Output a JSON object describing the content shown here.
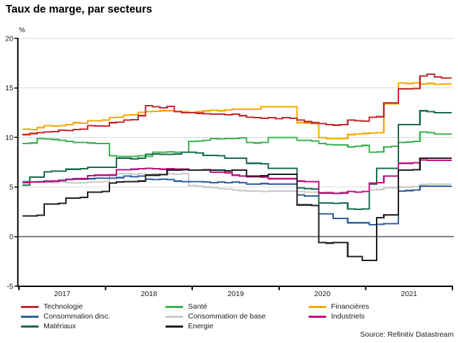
{
  "title": "Taux de marge, par secteurs",
  "source": "Source: Refinitiv Datastream",
  "y_axis": {
    "unit": "%",
    "tick_labels": [
      "20",
      "15",
      "10",
      "5",
      "0",
      "-5"
    ]
  },
  "x_axis": {
    "year_labels": [
      "2017",
      "2018",
      "2019",
      "2020",
      "2021"
    ]
  },
  "legend": {
    "items": [
      {
        "label": "Technologie",
        "color": "#c0282e"
      },
      {
        "label": "Consommation disc.",
        "color": "#2e5f9e"
      },
      {
        "label": "Matériaux",
        "color": "#176a45"
      },
      {
        "label": "Santé",
        "color": "#3bb14e"
      },
      {
        "label": "Consommation de base",
        "color": "#c9c9c9"
      },
      {
        "label": "Energie",
        "color": "#1c1c1c"
      },
      {
        "label": "Financières",
        "color": "#f6a800"
      },
      {
        "label": "Industriels",
        "color": "#bd0f7d"
      }
    ]
  },
  "chart_data": {
    "type": "line",
    "title": "Taux de marge, par secteurs",
    "ylabel": "%",
    "ylim": [
      -5,
      20
    ],
    "y_ticks": [
      -5,
      0,
      5,
      10,
      15,
      20
    ],
    "grid": true,
    "legend_position": "bottom",
    "x_years": [
      "2017",
      "2018",
      "2019",
      "2020",
      "2021"
    ],
    "x_sampling": "monthly",
    "colors": {
      "grid": "#d9d9d9",
      "axis": "#000000",
      "tick_text": "#1a1a1a"
    },
    "draw_order": [
      "Consommation de base",
      "Consommation disc.",
      "Santé",
      "Matériaux",
      "Financières",
      "Technologie",
      "Industriels",
      "Energie"
    ],
    "series": [
      {
        "name": "Technologie",
        "color": "#c0282e",
        "values": [
          10.3,
          10.4,
          10.5,
          10.55,
          10.6,
          10.75,
          10.7,
          10.8,
          10.85,
          11.2,
          11.15,
          11.15,
          11.5,
          11.55,
          11.75,
          11.8,
          12.2,
          13.2,
          13.1,
          13.0,
          13.15,
          12.6,
          12.5,
          12.5,
          12.45,
          12.4,
          12.35,
          12.35,
          12.3,
          12.35,
          12.2,
          12.05,
          12.0,
          11.95,
          12.0,
          11.9,
          12.0,
          11.95,
          11.75,
          11.6,
          11.5,
          11.4,
          11.3,
          11.25,
          11.3,
          11.75,
          11.7,
          11.65,
          12.05,
          12.1,
          13.5,
          13.5,
          14.9,
          14.9,
          14.95,
          16.2,
          16.4,
          16.1,
          16.0,
          16.0
        ]
      },
      {
        "name": "Consommation disc.",
        "color": "#2e5f9e",
        "values": [
          5.5,
          5.5,
          5.55,
          5.6,
          5.6,
          5.65,
          5.8,
          5.85,
          5.8,
          5.85,
          5.9,
          5.9,
          5.9,
          5.95,
          6.1,
          6.05,
          6.1,
          5.8,
          5.75,
          5.8,
          5.75,
          5.6,
          5.55,
          5.55,
          5.55,
          5.5,
          5.45,
          5.5,
          5.45,
          5.5,
          5.45,
          5.3,
          5.3,
          5.35,
          5.3,
          5.3,
          5.3,
          5.3,
          4.2,
          4.1,
          4.1,
          2.3,
          2.3,
          1.85,
          1.85,
          1.4,
          1.4,
          1.4,
          1.2,
          1.25,
          1.3,
          1.3,
          4.6,
          4.65,
          4.7,
          5.1,
          5.1,
          5.1,
          5.1,
          5.1
        ]
      },
      {
        "name": "Matériaux",
        "color": "#176a45",
        "values": [
          5.2,
          6.0,
          6.0,
          6.55,
          6.6,
          6.6,
          6.8,
          6.8,
          6.85,
          7.0,
          7.0,
          7.0,
          7.0,
          7.9,
          7.9,
          7.85,
          7.9,
          8.3,
          8.35,
          8.3,
          8.3,
          8.35,
          8.5,
          8.5,
          8.45,
          8.2,
          8.2,
          8.15,
          7.9,
          7.9,
          7.9,
          7.4,
          7.4,
          7.35,
          6.9,
          6.9,
          6.9,
          6.9,
          4.9,
          4.85,
          4.8,
          3.4,
          3.4,
          3.35,
          3.4,
          2.8,
          2.75,
          2.8,
          5.3,
          6.9,
          6.9,
          6.9,
          11.3,
          11.3,
          11.3,
          12.7,
          12.6,
          12.5,
          12.5,
          12.5
        ]
      },
      {
        "name": "Santé",
        "color": "#3bb14e",
        "values": [
          9.4,
          9.45,
          9.9,
          9.85,
          9.8,
          9.7,
          9.6,
          9.5,
          9.5,
          9.45,
          9.4,
          9.4,
          8.15,
          8.1,
          8.1,
          8.1,
          8.15,
          8.1,
          8.5,
          8.5,
          8.55,
          8.5,
          8.5,
          9.6,
          9.65,
          9.7,
          9.9,
          9.85,
          9.9,
          9.9,
          9.95,
          9.5,
          9.45,
          9.5,
          10.0,
          10.0,
          10.0,
          10.0,
          9.7,
          9.7,
          9.65,
          9.4,
          9.3,
          9.25,
          9.25,
          9.05,
          9.1,
          9.2,
          8.5,
          8.55,
          9.05,
          9.1,
          9.5,
          9.55,
          9.6,
          10.55,
          10.5,
          10.35,
          10.35,
          10.35
        ]
      },
      {
        "name": "Consommation de base",
        "color": "#c9c9c9",
        "values": [
          5.6,
          5.55,
          5.5,
          5.5,
          5.45,
          5.5,
          5.45,
          5.4,
          5.45,
          5.5,
          5.5,
          5.55,
          6.3,
          6.35,
          6.35,
          6.3,
          6.35,
          6.3,
          6.35,
          6.3,
          6.35,
          6.3,
          6.35,
          5.15,
          5.1,
          5.0,
          4.95,
          4.85,
          4.8,
          4.7,
          4.65,
          4.6,
          4.6,
          4.55,
          4.6,
          4.6,
          4.6,
          4.6,
          4.55,
          4.5,
          4.5,
          4.45,
          4.5,
          4.45,
          4.5,
          4.55,
          4.5,
          4.55,
          4.7,
          4.75,
          4.9,
          4.9,
          5.0,
          5.0,
          5.05,
          5.25,
          5.3,
          5.3,
          5.3,
          5.3
        ]
      },
      {
        "name": "Energie",
        "color": "#1c1c1c",
        "values": [
          2.1,
          2.1,
          2.15,
          3.3,
          3.3,
          3.35,
          3.9,
          3.9,
          3.95,
          4.5,
          4.5,
          4.55,
          5.4,
          5.5,
          5.55,
          5.55,
          5.6,
          6.2,
          6.2,
          6.25,
          6.7,
          6.7,
          6.75,
          6.7,
          6.7,
          6.75,
          6.7,
          6.7,
          6.65,
          6.7,
          6.7,
          6.1,
          6.1,
          6.15,
          6.3,
          6.3,
          6.3,
          6.3,
          3.2,
          3.2,
          3.15,
          -0.6,
          -0.65,
          -0.6,
          -0.6,
          -2.0,
          -2.0,
          -2.4,
          -2.4,
          1.9,
          2.2,
          2.2,
          6.7,
          6.7,
          6.75,
          7.9,
          7.9,
          7.9,
          7.9,
          7.9
        ]
      },
      {
        "name": "Financières",
        "color": "#f6a800",
        "values": [
          10.85,
          10.8,
          11.0,
          11.2,
          11.15,
          11.2,
          11.3,
          11.5,
          11.45,
          11.7,
          11.7,
          11.75,
          12.0,
          12.05,
          12.25,
          12.3,
          12.55,
          12.6,
          12.65,
          12.7,
          12.7,
          12.65,
          12.6,
          12.55,
          12.6,
          12.7,
          12.75,
          12.7,
          12.8,
          12.85,
          12.85,
          12.85,
          12.85,
          13.1,
          13.1,
          13.1,
          13.1,
          13.1,
          11.5,
          11.45,
          11.4,
          10.0,
          9.9,
          9.9,
          9.9,
          10.3,
          10.35,
          10.4,
          10.45,
          10.5,
          13.4,
          13.4,
          15.5,
          15.45,
          15.5,
          15.4,
          15.45,
          15.35,
          15.4,
          15.4
        ]
      },
      {
        "name": "Industriels",
        "color": "#bd0f7d",
        "values": [
          5.45,
          5.5,
          5.5,
          5.55,
          5.6,
          5.7,
          5.75,
          5.8,
          5.85,
          6.15,
          6.2,
          6.2,
          6.2,
          6.75,
          6.75,
          6.8,
          6.85,
          6.9,
          6.85,
          6.8,
          6.85,
          6.8,
          6.8,
          6.7,
          6.7,
          6.7,
          6.5,
          6.5,
          6.45,
          6.2,
          6.1,
          6.05,
          6.05,
          6.0,
          5.85,
          5.85,
          5.85,
          5.85,
          5.6,
          5.55,
          5.55,
          4.4,
          4.4,
          4.35,
          4.4,
          4.55,
          4.5,
          4.55,
          5.4,
          5.45,
          6.1,
          6.1,
          7.4,
          7.4,
          7.45,
          7.75,
          7.7,
          7.7,
          7.7,
          7.7
        ]
      }
    ]
  }
}
